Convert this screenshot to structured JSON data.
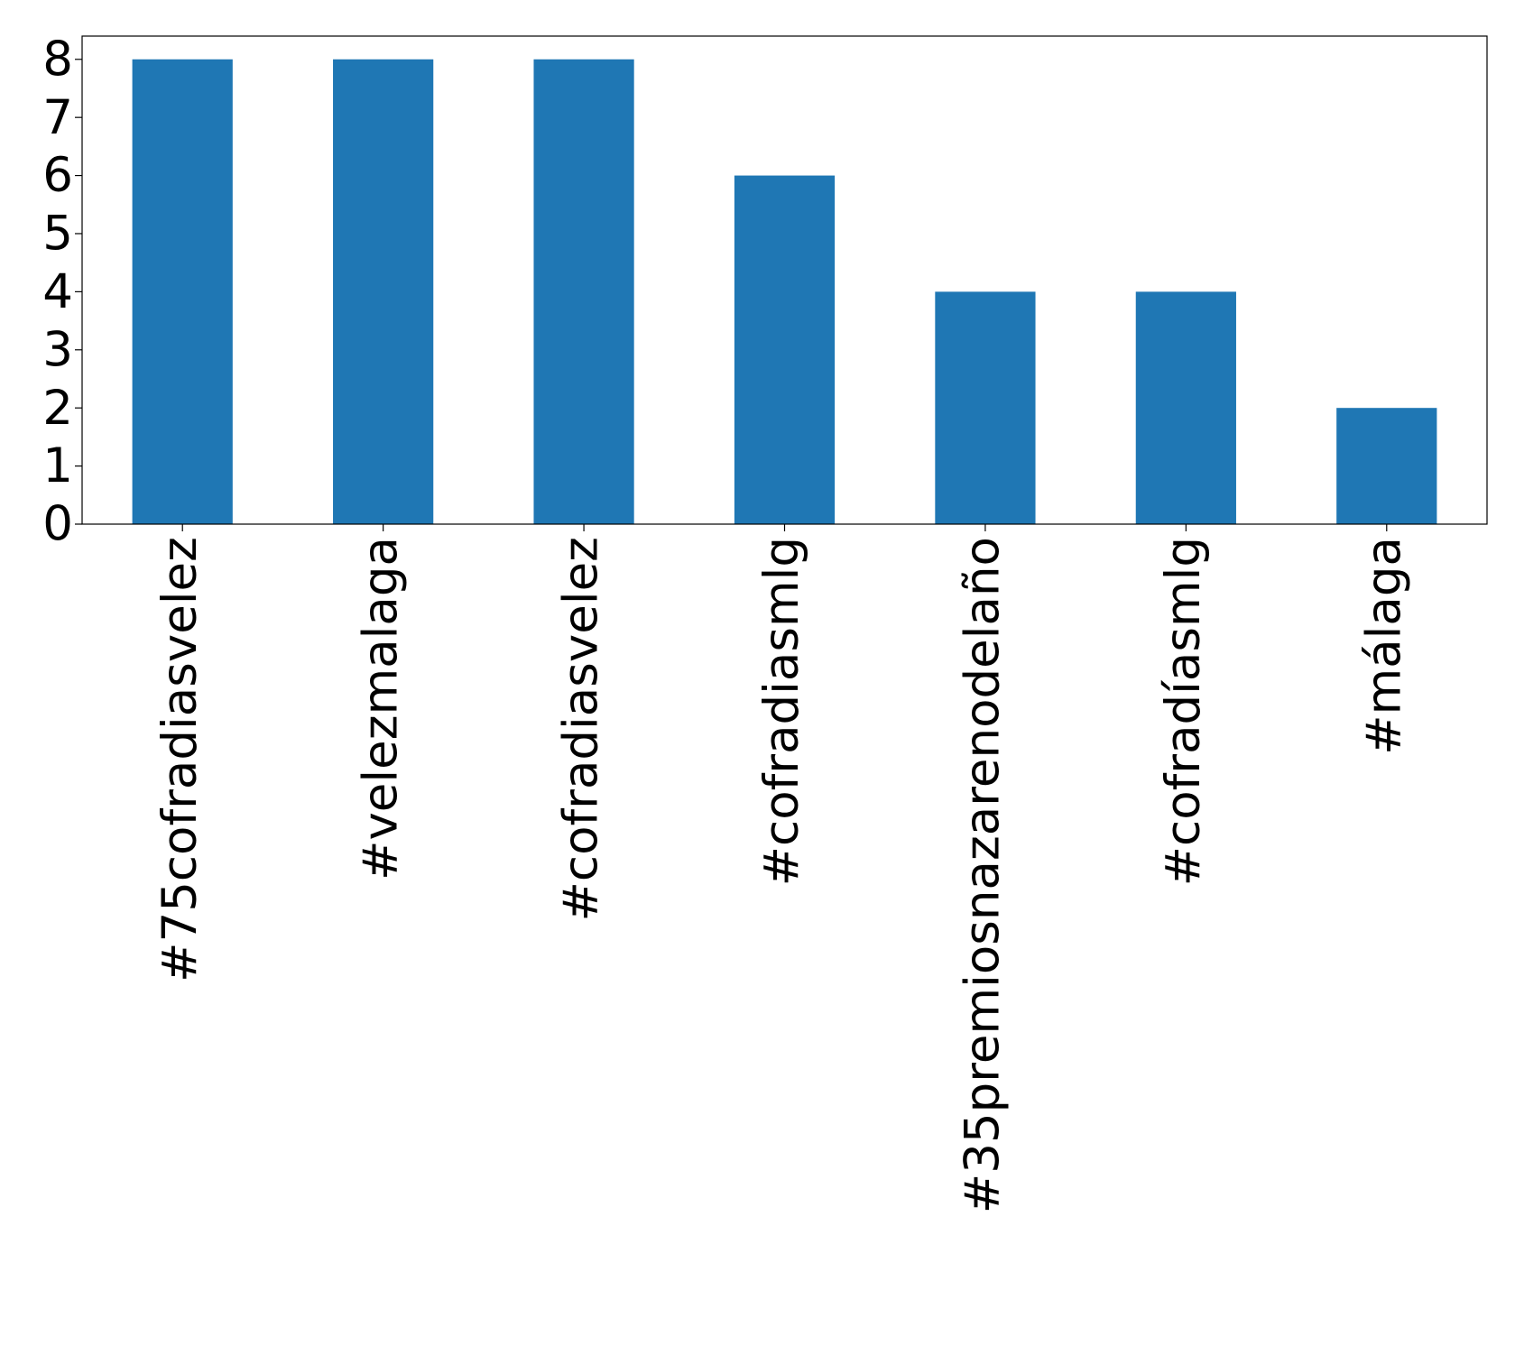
{
  "chart_data": {
    "type": "bar",
    "categories": [
      "#75cofradiasvelez",
      "#velezmalaga",
      "#cofradiasvelez",
      "#cofradiasmlg",
      "#35premiosnazarenodelaño",
      "#cofradíasmlg",
      "#málaga"
    ],
    "values": [
      8,
      8,
      8,
      6,
      4,
      4,
      2
    ],
    "color": "#1f77b4",
    "ylim": [
      0,
      8.4
    ],
    "yticks": [
      0,
      1,
      2,
      3,
      4,
      5,
      6,
      7,
      8
    ],
    "grid": false
  }
}
